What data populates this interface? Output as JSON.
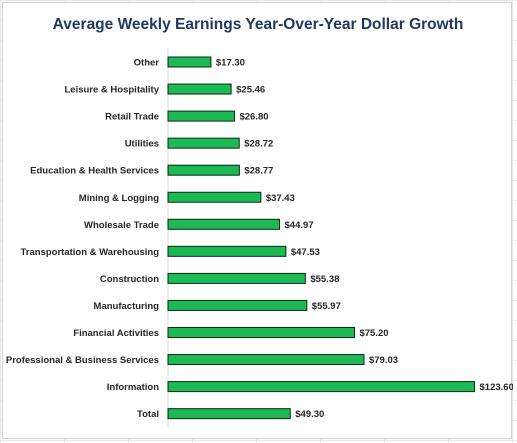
{
  "chart_data": {
    "type": "bar",
    "orientation": "horizontal",
    "title": "Average Weekly Earnings Year-Over-Year Dollar Growth",
    "categories": [
      "Other",
      "Leisure & Hospitality",
      "Retail Trade",
      "Utilities",
      "Education & Health Services",
      "Mining & Logging",
      "Wholesale Trade",
      "Transportation & Warehousing",
      "Construction",
      "Manufacturing",
      "Financial Activities",
      "Professional & Business Services",
      "Information",
      "Total"
    ],
    "values": [
      17.3,
      25.46,
      26.8,
      28.72,
      28.77,
      37.43,
      44.97,
      47.53,
      55.38,
      55.97,
      75.2,
      79.03,
      123.6,
      49.3
    ],
    "value_labels": [
      "$17.30",
      "$25.46",
      "$26.80",
      "$28.72",
      "$28.77",
      "$37.43",
      "$44.97",
      "$47.53",
      "$55.38",
      "$55.97",
      "$75.20",
      "$79.03",
      "$123.60",
      "$49.30"
    ],
    "xlim": [
      0,
      125
    ],
    "grid": false,
    "legend": "none",
    "colors": {
      "bar_fill": "#1db954",
      "bar_stroke": "#0a2a12",
      "title": "#1f3a60"
    }
  }
}
